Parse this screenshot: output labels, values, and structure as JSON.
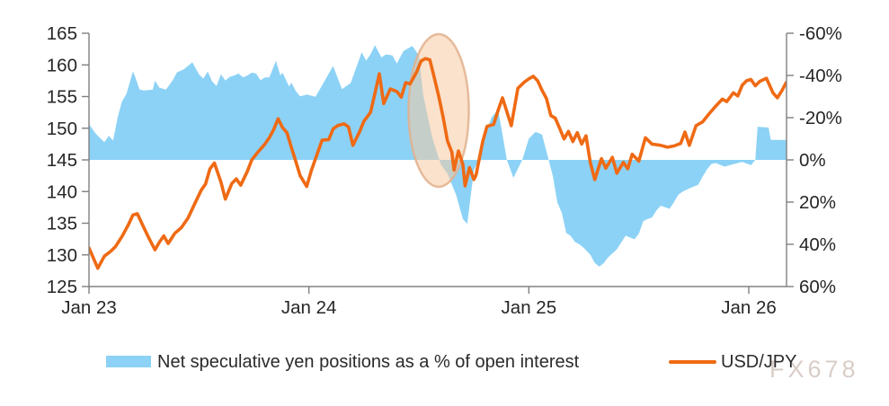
{
  "watermark": "FX678",
  "legend": {
    "area_label": "Net speculative yen positions as a % of open interest",
    "line_label": "USD/JPY"
  },
  "colors": {
    "area_blue": "#8CD2F6",
    "line_orange": "#EF6A14",
    "axis_gray": "#808080",
    "text_dark": "#262626",
    "ellipse_fill": "#F6CBA4",
    "ellipse_stroke": "#E2B08C",
    "watermark_color": "#D8CBC5"
  },
  "chart_data": {
    "type": "area+line dual-axis combo",
    "title": "",
    "x_axis": {
      "tick_labels": [
        "Jan 23",
        "Jan 24",
        "Jan 25",
        "Jan 26"
      ],
      "tick_years": [
        23,
        24,
        25,
        26
      ],
      "range_years": [
        23,
        26.17
      ]
    },
    "left_axis": {
      "series": "USD/JPY",
      "tick_labels": [
        "165",
        "160",
        "155",
        "150",
        "145",
        "140",
        "135",
        "130",
        "125"
      ],
      "ticks": [
        165,
        160,
        155,
        150,
        145,
        140,
        135,
        130,
        125
      ],
      "range": [
        125,
        165
      ]
    },
    "right_axis": {
      "series": "Net speculative yen positions as a % of open interest",
      "tick_labels": [
        "-60%",
        "-40%",
        "-20%",
        "0%",
        "20%",
        "40%",
        "60%"
      ],
      "ticks": [
        -60,
        -40,
        -20,
        0,
        20,
        40,
        60
      ],
      "range": [
        -60,
        60
      ],
      "inverted": true,
      "area_baseline": 0
    },
    "annotation_ellipse": {
      "center_year": 24.59,
      "center_usdjpy_value": 152.8,
      "radius_years": 0.137,
      "radius_usdjpy_units": 12.05,
      "meaning": "highlight of mid-2024 positioning unwind / USD/JPY drop"
    },
    "series": [
      {
        "name": "Net speculative yen positions as a % of open interest",
        "type": "area",
        "axis": "right",
        "unit": "% of open interest (inverted axis)",
        "points": [
          [
            23.0,
            -17.0
          ],
          [
            23.03,
            -12.5
          ],
          [
            23.07,
            -8.4
          ],
          [
            23.09,
            -11.4
          ],
          [
            23.11,
            -9.2
          ],
          [
            23.13,
            -20.0
          ],
          [
            23.15,
            -27.7
          ],
          [
            23.17,
            -31.2
          ],
          [
            23.2,
            -41.9
          ],
          [
            23.21,
            -39.3
          ],
          [
            23.23,
            -33.3
          ],
          [
            23.25,
            -32.9
          ],
          [
            23.29,
            -33.3
          ],
          [
            23.3,
            -37.6
          ],
          [
            23.32,
            -34.2
          ],
          [
            23.35,
            -33.3
          ],
          [
            23.38,
            -37.6
          ],
          [
            23.4,
            -41.5
          ],
          [
            23.43,
            -42.8
          ],
          [
            23.47,
            -46.2
          ],
          [
            23.5,
            -40.6
          ],
          [
            23.52,
            -38.5
          ],
          [
            23.54,
            -41.9
          ],
          [
            23.56,
            -37.2
          ],
          [
            23.58,
            -35.0
          ],
          [
            23.6,
            -40.6
          ],
          [
            23.62,
            -37.6
          ],
          [
            23.64,
            -39.3
          ],
          [
            23.66,
            -40.0
          ],
          [
            23.68,
            -40.9
          ],
          [
            23.7,
            -39.1
          ],
          [
            23.72,
            -40.0
          ],
          [
            23.74,
            -41.3
          ],
          [
            23.76,
            -40.9
          ],
          [
            23.78,
            -37.8
          ],
          [
            23.8,
            -39.0
          ],
          [
            23.82,
            -39.1
          ],
          [
            23.85,
            -46.9
          ],
          [
            23.87,
            -40.0
          ],
          [
            23.88,
            -41.3
          ],
          [
            23.91,
            -34.8
          ],
          [
            23.92,
            -36.6
          ],
          [
            23.94,
            -32.7
          ],
          [
            23.96,
            -30.1
          ],
          [
            23.99,
            -31.0
          ],
          [
            24.03,
            -29.9
          ],
          [
            24.07,
            -37.2
          ],
          [
            24.11,
            -44.5
          ],
          [
            24.15,
            -33.5
          ],
          [
            24.19,
            -36.5
          ],
          [
            24.23,
            -48.0
          ],
          [
            24.24,
            -51.0
          ],
          [
            24.26,
            -47.0
          ],
          [
            24.28,
            -50.0
          ],
          [
            24.3,
            -54.4
          ],
          [
            24.33,
            -48.5
          ],
          [
            24.35,
            -50.0
          ],
          [
            24.38,
            -49.5
          ],
          [
            24.4,
            -45.6
          ],
          [
            24.43,
            -51.6
          ],
          [
            24.47,
            -54.0
          ],
          [
            24.5,
            -49.5
          ],
          [
            24.52,
            -30.5
          ],
          [
            24.56,
            -10.8
          ],
          [
            24.6,
            2.2
          ],
          [
            24.63,
            6.5
          ],
          [
            24.67,
            16.8
          ],
          [
            24.7,
            28.0
          ],
          [
            24.72,
            30.3
          ],
          [
            24.75,
            5.0
          ],
          [
            24.77,
            0.0
          ],
          [
            24.79,
            -8.4
          ],
          [
            24.83,
            -20.0
          ],
          [
            24.86,
            -24.0
          ],
          [
            24.9,
            0.0
          ],
          [
            24.93,
            8.5
          ],
          [
            24.97,
            0.0
          ],
          [
            25.0,
            -10.0
          ],
          [
            25.03,
            -13.3
          ],
          [
            25.06,
            -12.0
          ],
          [
            25.09,
            0.0
          ],
          [
            25.11,
            8.0
          ],
          [
            25.13,
            20.4
          ],
          [
            25.15,
            25.0
          ],
          [
            25.17,
            34.6
          ],
          [
            25.19,
            36.0
          ],
          [
            25.21,
            38.9
          ],
          [
            25.23,
            40.0
          ],
          [
            25.25,
            41.7
          ],
          [
            25.28,
            45.0
          ],
          [
            25.3,
            48.8
          ],
          [
            25.32,
            50.5
          ],
          [
            25.34,
            49.0
          ],
          [
            25.36,
            46.2
          ],
          [
            25.4,
            42.4
          ],
          [
            25.44,
            35.9
          ],
          [
            25.48,
            37.6
          ],
          [
            25.5,
            35.0
          ],
          [
            25.52,
            29.0
          ],
          [
            25.54,
            28.0
          ],
          [
            25.56,
            27.3
          ],
          [
            25.58,
            24.0
          ],
          [
            25.6,
            21.7
          ],
          [
            25.64,
            23.2
          ],
          [
            25.66,
            20.0
          ],
          [
            25.68,
            16.5
          ],
          [
            25.7,
            15.0
          ],
          [
            25.72,
            14.0
          ],
          [
            25.74,
            13.0
          ],
          [
            25.77,
            11.8
          ],
          [
            25.79,
            8.0
          ],
          [
            25.81,
            4.5
          ],
          [
            25.83,
            1.9
          ],
          [
            25.85,
            1.5
          ],
          [
            25.89,
            3.2
          ],
          [
            25.93,
            2.0
          ],
          [
            25.97,
            1.0
          ],
          [
            26.01,
            2.5
          ],
          [
            26.03,
            0.0
          ],
          [
            26.04,
            -15.7
          ],
          [
            26.09,
            -15.3
          ],
          [
            26.1,
            -9.5
          ],
          [
            26.17,
            -9.5
          ]
        ]
      },
      {
        "name": "USD/JPY",
        "type": "line",
        "axis": "left",
        "unit": "JPY per USD",
        "points": [
          [
            23.0,
            131.1
          ],
          [
            23.02,
            129.5
          ],
          [
            23.04,
            127.9
          ],
          [
            23.07,
            129.8
          ],
          [
            23.1,
            130.6
          ],
          [
            23.12,
            131.3
          ],
          [
            23.15,
            132.9
          ],
          [
            23.18,
            134.8
          ],
          [
            23.2,
            136.3
          ],
          [
            23.22,
            136.5
          ],
          [
            23.24,
            135.0
          ],
          [
            23.27,
            132.8
          ],
          [
            23.3,
            130.8
          ],
          [
            23.32,
            132.0
          ],
          [
            23.34,
            133.0
          ],
          [
            23.36,
            131.8
          ],
          [
            23.39,
            133.4
          ],
          [
            23.42,
            134.3
          ],
          [
            23.45,
            135.8
          ],
          [
            23.48,
            138.0
          ],
          [
            23.51,
            140.2
          ],
          [
            23.53,
            141.2
          ],
          [
            23.55,
            143.6
          ],
          [
            23.57,
            144.5
          ],
          [
            23.6,
            141.5
          ],
          [
            23.62,
            138.8
          ],
          [
            23.65,
            141.3
          ],
          [
            23.67,
            142.0
          ],
          [
            23.69,
            141.0
          ],
          [
            23.72,
            143.2
          ],
          [
            23.74,
            145.0
          ],
          [
            23.77,
            146.3
          ],
          [
            23.8,
            147.5
          ],
          [
            23.82,
            148.5
          ],
          [
            23.84,
            149.8
          ],
          [
            23.86,
            151.5
          ],
          [
            23.88,
            150.1
          ],
          [
            23.9,
            149.3
          ],
          [
            23.92,
            147.0
          ],
          [
            23.94,
            144.8
          ],
          [
            23.96,
            142.5
          ],
          [
            23.99,
            140.8
          ],
          [
            24.01,
            143.2
          ],
          [
            24.04,
            146.2
          ],
          [
            24.06,
            148.1
          ],
          [
            24.09,
            148.2
          ],
          [
            24.11,
            149.9
          ],
          [
            24.13,
            150.4
          ],
          [
            24.16,
            150.7
          ],
          [
            24.18,
            150.2
          ],
          [
            24.2,
            147.3
          ],
          [
            24.23,
            149.4
          ],
          [
            24.25,
            151.1
          ],
          [
            24.28,
            152.5
          ],
          [
            24.3,
            155.5
          ],
          [
            24.32,
            158.6
          ],
          [
            24.34,
            153.9
          ],
          [
            24.37,
            156.2
          ],
          [
            24.4,
            155.8
          ],
          [
            24.42,
            154.9
          ],
          [
            24.44,
            157.2
          ],
          [
            24.46,
            157.0
          ],
          [
            24.49,
            158.9
          ],
          [
            24.51,
            160.6
          ],
          [
            24.53,
            161.0
          ],
          [
            24.55,
            160.8
          ],
          [
            24.57,
            158.0
          ],
          [
            24.59,
            155.1
          ],
          [
            24.61,
            151.8
          ],
          [
            24.63,
            148.0
          ],
          [
            24.65,
            146.2
          ],
          [
            24.66,
            143.4
          ],
          [
            24.68,
            146.4
          ],
          [
            24.7,
            144.3
          ],
          [
            24.71,
            140.9
          ],
          [
            24.73,
            143.8
          ],
          [
            24.75,
            141.9
          ],
          [
            24.76,
            142.6
          ],
          [
            24.79,
            147.9
          ],
          [
            24.81,
            150.3
          ],
          [
            24.84,
            150.6
          ],
          [
            24.86,
            152.8
          ],
          [
            24.88,
            154.8
          ],
          [
            24.92,
            150.4
          ],
          [
            24.95,
            156.3
          ],
          [
            24.98,
            157.3
          ],
          [
            25.0,
            157.8
          ],
          [
            25.02,
            158.2
          ],
          [
            25.04,
            157.5
          ],
          [
            25.06,
            156.0
          ],
          [
            25.08,
            154.7
          ],
          [
            25.1,
            152.0
          ],
          [
            25.12,
            151.6
          ],
          [
            25.14,
            150.0
          ],
          [
            25.16,
            148.3
          ],
          [
            25.18,
            149.5
          ],
          [
            25.2,
            147.9
          ],
          [
            25.22,
            149.3
          ],
          [
            25.24,
            147.5
          ],
          [
            25.26,
            148.8
          ],
          [
            25.28,
            144.5
          ],
          [
            25.3,
            141.9
          ],
          [
            25.33,
            145.2
          ],
          [
            25.35,
            143.7
          ],
          [
            25.38,
            145.4
          ],
          [
            25.4,
            142.9
          ],
          [
            25.43,
            144.6
          ],
          [
            25.45,
            143.6
          ],
          [
            25.47,
            145.9
          ],
          [
            25.5,
            144.8
          ],
          [
            25.53,
            148.5
          ],
          [
            25.56,
            147.5
          ],
          [
            25.6,
            147.3
          ],
          [
            25.63,
            147.0
          ],
          [
            25.66,
            147.2
          ],
          [
            25.69,
            147.6
          ],
          [
            25.71,
            149.4
          ],
          [
            25.73,
            147.3
          ],
          [
            25.76,
            150.4
          ],
          [
            25.79,
            151.0
          ],
          [
            25.82,
            152.3
          ],
          [
            25.85,
            153.5
          ],
          [
            25.88,
            154.6
          ],
          [
            25.9,
            154.2
          ],
          [
            25.93,
            155.6
          ],
          [
            25.95,
            155.1
          ],
          [
            25.97,
            156.8
          ],
          [
            25.99,
            157.5
          ],
          [
            26.01,
            157.7
          ],
          [
            26.03,
            156.7
          ],
          [
            26.05,
            157.4
          ],
          [
            26.08,
            157.9
          ],
          [
            26.11,
            155.6
          ],
          [
            26.13,
            154.8
          ],
          [
            26.15,
            155.9
          ],
          [
            26.17,
            157.2
          ]
        ]
      }
    ]
  }
}
